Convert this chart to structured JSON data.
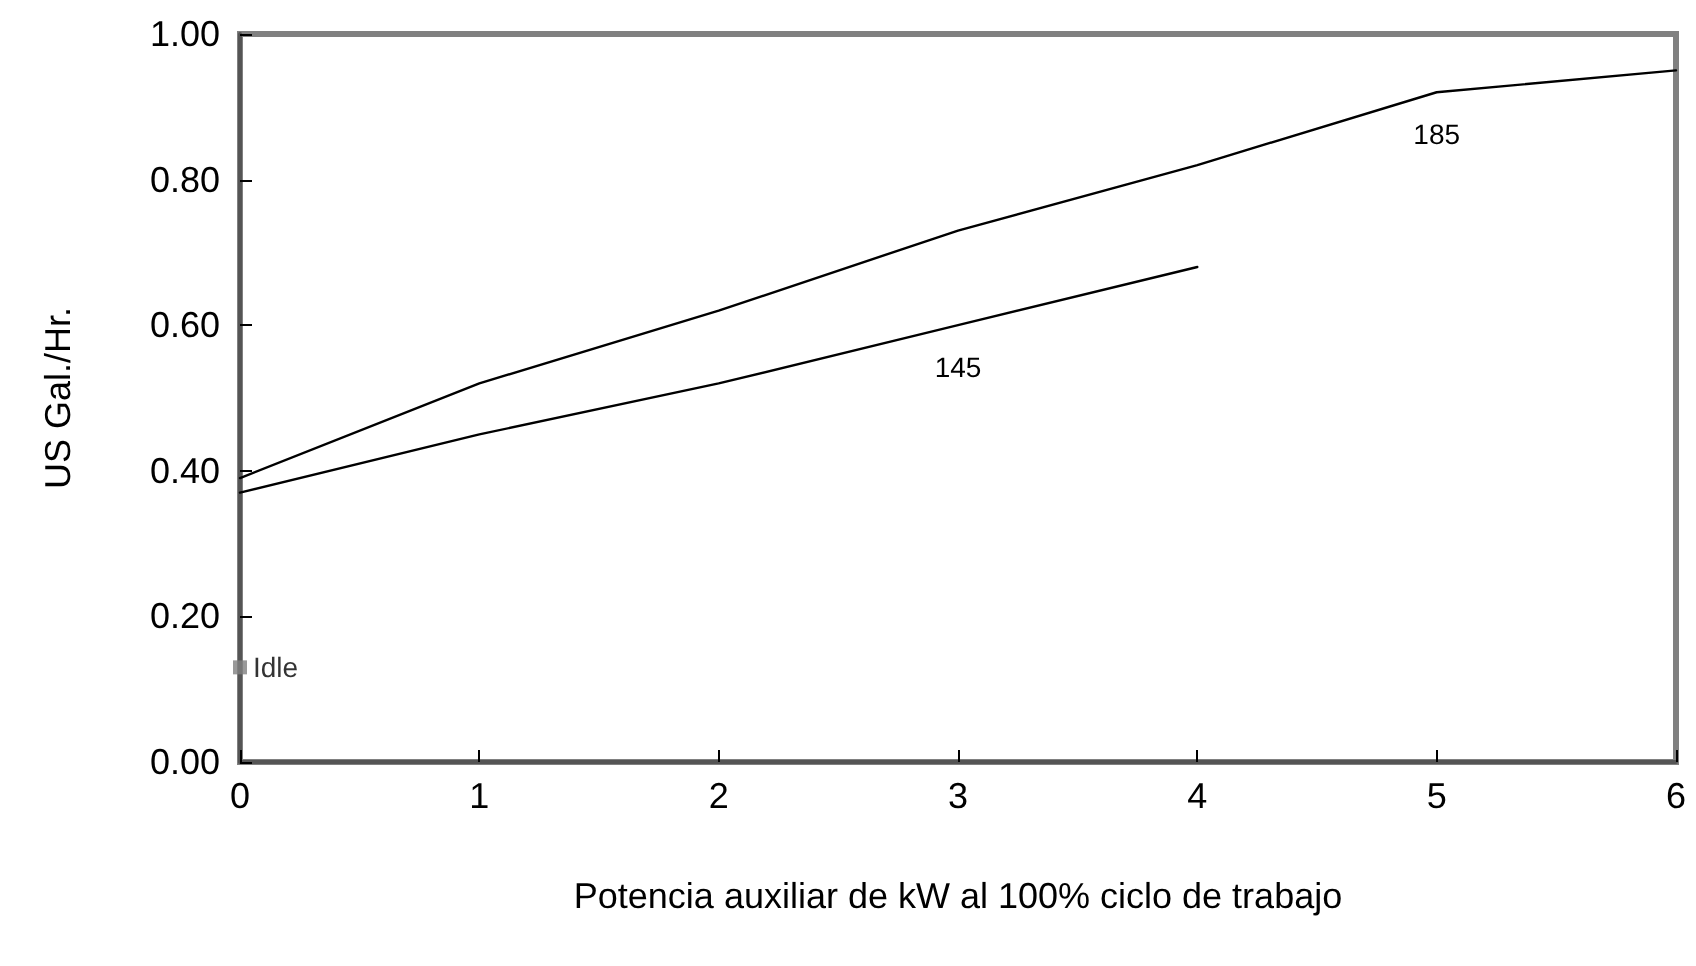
{
  "chart_data": {
    "type": "line",
    "xlabel": "Potencia auxiliar de kW al 100% ciclo de trabajo",
    "ylabel": "US Gal./Hr.",
    "xlim": [
      0,
      6
    ],
    "xticks": [
      0,
      1,
      2,
      3,
      4,
      5,
      6
    ],
    "ylim": [
      0,
      1
    ],
    "yticks": [
      {
        "value": 0,
        "label": "0.00"
      },
      {
        "value": 0.2,
        "label": "0.20"
      },
      {
        "value": 0.4,
        "label": "0.40"
      },
      {
        "value": 0.6,
        "label": "0.60"
      },
      {
        "value": 0.8,
        "label": "0.80"
      },
      {
        "value": 1,
        "label": "1.00"
      }
    ],
    "grid": false,
    "legend": false,
    "marker": "none",
    "line_style": "solid",
    "series": [
      {
        "name": "185",
        "color": "#000000",
        "x": [
          0,
          1,
          2,
          3,
          4,
          5,
          6
        ],
        "values": [
          0.39,
          0.52,
          0.62,
          0.73,
          0.82,
          0.92,
          0.95
        ]
      },
      {
        "name": "145",
        "color": "#000000",
        "x": [
          0,
          1,
          2,
          3,
          4
        ],
        "values": [
          0.37,
          0.45,
          0.52,
          0.6,
          0.68
        ]
      },
      {
        "name": "Idle",
        "type": "scatter",
        "marker": "square",
        "color": "#808080",
        "x": [
          0
        ],
        "values": [
          0.13
        ]
      }
    ]
  }
}
